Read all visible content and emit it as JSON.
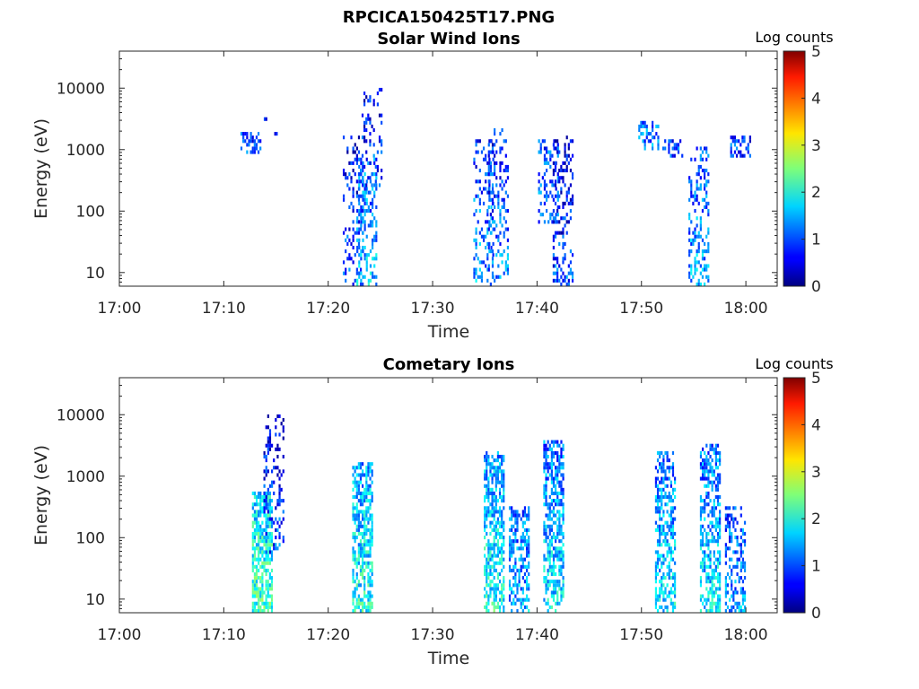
{
  "figure_title": "RPCICA150425T17.PNG",
  "chart_data": [
    {
      "type": "heatmap",
      "title": "Solar Wind Ions",
      "xlabel": "Time",
      "ylabel": "Energy (eV)",
      "x_ticks": [
        "17:00",
        "17:10",
        "17:20",
        "17:30",
        "17:40",
        "17:50",
        "18:00"
      ],
      "xlim": [
        "17:00",
        "18:03"
      ],
      "y_scale": "log",
      "y_ticks": [
        "10",
        "100",
        "1000",
        "10000"
      ],
      "ylim": [
        6,
        40000
      ],
      "colorbar": {
        "label": "Log counts",
        "ticks": [
          "0",
          "1",
          "2",
          "3",
          "4",
          "5"
        ],
        "range": [
          0,
          5
        ],
        "colormap": "jet"
      },
      "bursts": [
        {
          "t": "17:12.6",
          "e_min": 850,
          "e_max": 1700,
          "level": 1.0,
          "density": 0.5,
          "low_cutoff": 800
        },
        {
          "t": "17:14.0",
          "e_min": 3300,
          "e_max": 3300,
          "level": 0.9,
          "density": 1.0
        },
        {
          "t": "17:15.0",
          "e_min": 1900,
          "e_max": 1900,
          "level": 0.9,
          "density": 1.0
        },
        {
          "t": "17:22.4",
          "e_min": 6,
          "e_max": 1500,
          "level": 1.1,
          "density": 0.25
        },
        {
          "t": "17:23.7",
          "e_min": 6,
          "e_max": 700,
          "level": 1.6,
          "density": 0.35
        },
        {
          "t": "17:24.2",
          "e_min": 200,
          "e_max": 9000,
          "level": 1.0,
          "density": 0.2
        },
        {
          "t": "17:34.9",
          "e_min": 6,
          "e_max": 1300,
          "level": 1.4,
          "density": 0.25
        },
        {
          "t": "17:36.3",
          "e_min": 6,
          "e_max": 2200,
          "level": 1.3,
          "density": 0.3
        },
        {
          "t": "17:41.1",
          "e_min": 70,
          "e_max": 1400,
          "level": 1.2,
          "density": 0.3
        },
        {
          "t": "17:42.5",
          "e_min": 6,
          "e_max": 1500,
          "level": 1.0,
          "density": 0.3
        },
        {
          "t": "17:50.7",
          "e_min": 1000,
          "e_max": 2800,
          "level": 1.2,
          "density": 0.35
        },
        {
          "t": "17:53.0",
          "e_min": 800,
          "e_max": 1300,
          "level": 0.9,
          "density": 0.3
        },
        {
          "t": "17:55.5",
          "e_min": 6,
          "e_max": 1000,
          "level": 1.5,
          "density": 0.3
        },
        {
          "t": "17:59.5",
          "e_min": 800,
          "e_max": 1500,
          "level": 0.9,
          "density": 0.5
        }
      ]
    },
    {
      "type": "heatmap",
      "title": "Cometary Ions",
      "xlabel": "Time",
      "ylabel": "Energy (eV)",
      "x_ticks": [
        "17:00",
        "17:10",
        "17:20",
        "17:30",
        "17:40",
        "17:50",
        "18:00"
      ],
      "xlim": [
        "17:00",
        "18:03"
      ],
      "y_scale": "log",
      "y_ticks": [
        "10",
        "100",
        "1000",
        "10000"
      ],
      "ylim": [
        6,
        40000
      ],
      "colorbar": {
        "label": "Log counts",
        "ticks": [
          "0",
          "1",
          "2",
          "3",
          "4",
          "5"
        ],
        "range": [
          0,
          5
        ],
        "colormap": "jet"
      },
      "bursts": [
        {
          "t": "17:13.7",
          "e_min": 6,
          "e_max": 500,
          "level": 2.2,
          "density": 0.75
        },
        {
          "t": "17:14.8",
          "e_min": 60,
          "e_max": 9000,
          "level": 1.0,
          "density": 0.25
        },
        {
          "t": "17:23.3",
          "e_min": 6,
          "e_max": 1500,
          "level": 2.0,
          "density": 0.65
        },
        {
          "t": "17:35.9",
          "e_min": 6,
          "e_max": 2500,
          "level": 2.0,
          "density": 0.6
        },
        {
          "t": "17:38.3",
          "e_min": 6,
          "e_max": 300,
          "level": 1.5,
          "density": 0.55
        },
        {
          "t": "17:41.6",
          "e_min": 6,
          "e_max": 3500,
          "level": 1.8,
          "density": 0.6
        },
        {
          "t": "17:52.3",
          "e_min": 6,
          "e_max": 2500,
          "level": 1.8,
          "density": 0.55
        },
        {
          "t": "17:56.6",
          "e_min": 6,
          "e_max": 3000,
          "level": 1.8,
          "density": 0.55
        },
        {
          "t": "17:59.0",
          "e_min": 6,
          "e_max": 300,
          "level": 1.4,
          "density": 0.45
        }
      ]
    }
  ]
}
